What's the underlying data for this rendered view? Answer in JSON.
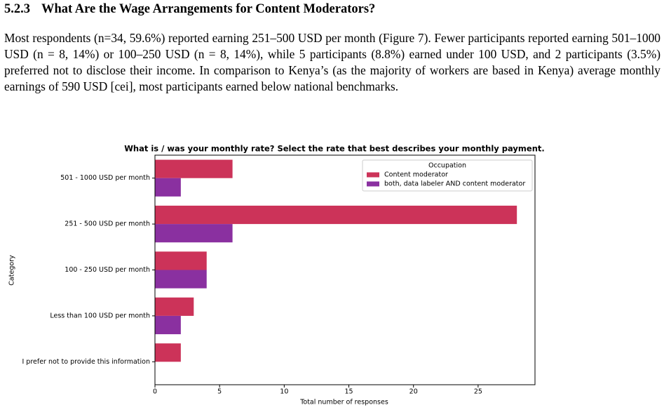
{
  "section": {
    "number": "5.2.3",
    "title": "What Are the Wage Arrangements for Content Moderators?"
  },
  "paragraph": "Most respondents (n=34, 59.6%) reported earning 251–500 USD per month (Figure 7). Fewer participants reported earning 501–1000 USD (n = 8, 14%) or 100–250 USD (n = 8, 14%), while 5 participants (8.8%) earned under 100 USD, and 2 participants (3.5%) preferred not to disclose their income. In comparison to Kenya’s (as the majority of workers are based in Kenya) average monthly earnings of 590 USD [cei], most participants earned below national benchmarks.",
  "chart_data": {
    "type": "barh",
    "title": "What is / was your monthly rate? Select the rate that best describes your monthly payment.",
    "x_label": "Total number of responses",
    "y_label": "Category",
    "categories": [
      "501 - 1000 USD per month",
      "251 - 500 USD per month",
      "100 - 250 USD per month",
      "Less than 100 USD per month",
      "I prefer not to provide this information"
    ],
    "series": [
      {
        "name": "Content moderator",
        "color": "#cc3359",
        "values": [
          6,
          28,
          4,
          3,
          2
        ]
      },
      {
        "name": "both, data labeler AND content moderator",
        "color": "#8a30a0",
        "values": [
          2,
          6,
          4,
          2,
          0
        ]
      }
    ],
    "legend_title": "Occupation",
    "legend": "upper right",
    "xlim": [
      0,
      29.4
    ],
    "xticks": [
      0,
      5,
      10,
      15,
      20,
      25
    ]
  }
}
